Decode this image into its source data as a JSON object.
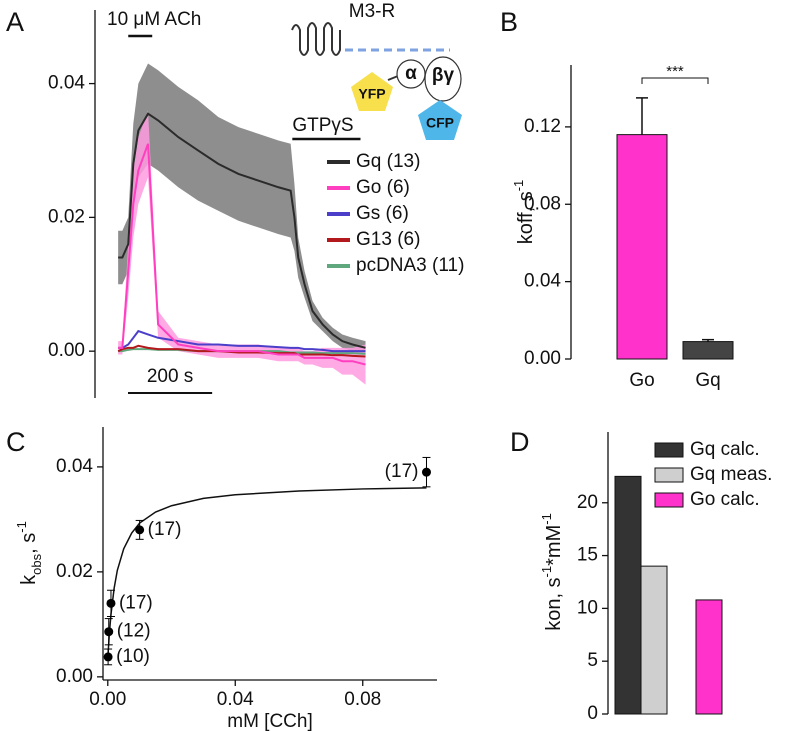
{
  "chart_data": [
    {
      "type": "line",
      "panel": "A",
      "x": [
        0,
        10,
        24,
        36,
        48,
        71,
        95,
        143,
        190,
        238,
        286,
        333,
        381,
        410,
        419,
        428,
        443,
        462,
        486,
        510,
        533,
        557,
        588
      ],
      "xlim": [
        -55,
        620
      ],
      "ylim": [
        -0.007,
        0.051
      ],
      "yticks": [
        {
          "value": 0,
          "label": "0.00"
        },
        0.02,
        0.04
      ],
      "series": [
        {
          "name": "Gq (13)",
          "color": "#2b2b2b",
          "band_color": "#7a7a7a",
          "values": [
            0.014,
            0.014,
            0.016,
            0.028,
            0.033,
            0.0355,
            0.0345,
            0.032,
            0.03,
            0.028,
            0.0265,
            0.0255,
            0.0245,
            0.024,
            0.02,
            0.014,
            0.01,
            0.006,
            0.004,
            0.0025,
            0.0015,
            0.001,
            0.0005
          ],
          "errors": [
            0.004,
            0.004,
            0.004,
            0.006,
            0.007,
            0.0075,
            0.0075,
            0.0075,
            0.0075,
            0.007,
            0.007,
            0.007,
            0.007,
            0.007,
            0.005,
            0.003,
            0.002,
            0.0015,
            0.001,
            0.001,
            0.001,
            0.001,
            0.001
          ]
        },
        {
          "name": "Go (6)",
          "color": "#ff3fbf",
          "band_color": "#ff9be0",
          "values": [
            0.0005,
            0.0005,
            0.012,
            0.022,
            0.027,
            0.031,
            0.004,
            0.001,
            0.0005,
            0,
            0,
            0,
            -0.0005,
            -0.0005,
            -0.0005,
            -0.0005,
            -0.001,
            -0.001,
            -0.001,
            -0.001,
            -0.0015,
            -0.0015,
            -0.002
          ],
          "errors": [
            0.001,
            0.001,
            0.004,
            0.005,
            0.005,
            0.005,
            0.002,
            0.001,
            0.001,
            0.001,
            0.001,
            0.001,
            0.001,
            0.001,
            0.001,
            0.001,
            0.001,
            0.001,
            0.0015,
            0.0015,
            0.002,
            0.002,
            0.003
          ]
        },
        {
          "name": "Gs (6)",
          "color": "#4b3fc9",
          "values": [
            0.0005,
            0.0005,
            0.001,
            0.002,
            0.003,
            0.0025,
            0.002,
            0.0015,
            0.001,
            0.001,
            0.0008,
            0.0008,
            0.0006,
            0.0005,
            0.0005,
            0.0005,
            0.0003,
            0.0003,
            0.0002,
            0,
            0,
            0,
            0
          ]
        },
        {
          "name": "G13 (6)",
          "color": "#b3191c",
          "values": [
            0,
            0.0003,
            0.0005,
            0.0005,
            0.0008,
            0.0005,
            0.0003,
            0.0003,
            0,
            0,
            -0.0002,
            -0.0002,
            -0.0003,
            -0.0003,
            -0.0003,
            -0.0005,
            -0.0005,
            -0.0005,
            -0.0005,
            -0.0006,
            -0.0006,
            -0.0007,
            -0.0008
          ]
        },
        {
          "name": "pcDNA3 (11)",
          "color": "#5fa87e",
          "values": [
            0,
            0,
            0.0002,
            0.0003,
            0.0003,
            0.0003,
            0.0002,
            0.0002,
            0,
            0,
            0,
            0,
            0,
            -0.0002,
            -0.0002,
            -0.0002,
            -0.0002,
            -0.0002,
            -0.0003,
            -0.0003,
            -0.0003,
            -0.0003,
            -0.0004
          ]
        }
      ],
      "annotations": [
        {
          "label": "10 μM ACh",
          "x": [
            24,
            81
          ]
        },
        {
          "label": "GTPγS",
          "x": [
            414,
            576
          ]
        }
      ],
      "scalebar": {
        "label": "200 s",
        "length": 200
      },
      "inset": {
        "receptor": "M3-R",
        "donor": "YFP",
        "acceptor": "CFP",
        "alpha": "α",
        "beta_gamma": "βγ"
      }
    },
    {
      "type": "bar",
      "panel": "B",
      "categories": [
        "Go",
        "Gq"
      ],
      "values": [
        0.116,
        0.009
      ],
      "errors": [
        0.019,
        0.001
      ],
      "colors": [
        "#ff33cc",
        "#444444"
      ],
      "ylim": [
        0,
        0.152
      ],
      "yticks": [
        {
          "value": 0,
          "label": "0.00"
        },
        0.04,
        0.08,
        0.12
      ],
      "ylabel": {
        "text": "koff, s",
        "sup": "-1"
      },
      "significance": "***"
    },
    {
      "type": "scatter",
      "panel": "C",
      "x": [
        0.0001,
        0.0003,
        0.001,
        0.01,
        0.1
      ],
      "values": [
        0.0038,
        0.0086,
        0.014,
        0.028,
        0.039
      ],
      "errors": [
        0.0015,
        0.0025,
        0.0025,
        0.0018,
        0.0028
      ],
      "point_labels": [
        "(10)",
        "(12)",
        "(17)",
        "(17)",
        "(17)"
      ],
      "fit": {
        "x": [
          0,
          0.0005,
          0.001,
          0.002,
          0.003,
          0.005,
          0.0075,
          0.01,
          0.015,
          0.02,
          0.03,
          0.04,
          0.06,
          0.08,
          0.1
        ],
        "y": [
          0.0035,
          0.0083,
          0.0119,
          0.0169,
          0.0203,
          0.0244,
          0.0274,
          0.0293,
          0.0314,
          0.0326,
          0.034,
          0.0347,
          0.0354,
          0.0358,
          0.036
        ]
      },
      "color": "#000000",
      "xlim": [
        -0.0015,
        0.1033
      ],
      "xticks": [
        {
          "value": 0,
          "label": "0.00"
        },
        0.04,
        0.08
      ],
      "ylim": [
        -0.0006,
        0.0476
      ],
      "yticks": [
        {
          "value": 0,
          "label": "0.00"
        },
        0.02,
        0.04
      ],
      "xlabel": "mM [CCh]",
      "ylabel": {
        "text": "k",
        "sub": "obs",
        "unit": ", s",
        "sup": "-1"
      }
    },
    {
      "type": "bar",
      "panel": "D",
      "series": [
        {
          "name": "Gq calc.",
          "color": "#333333",
          "values": [
            22.5
          ]
        },
        {
          "name": "Gq meas.",
          "color": "#cfcfcf",
          "values": [
            14.0
          ]
        },
        {
          "name": "Go calc.",
          "color": "#ff33cc",
          "values": [
            10.8
          ]
        }
      ],
      "ylim": [
        0,
        26.7
      ],
      "yticks": [
        0,
        5,
        10,
        15,
        20
      ],
      "ylabel": {
        "text": "kon, s",
        "sup": "-1",
        "text2": "*mM",
        "sup2": "-1"
      }
    }
  ]
}
